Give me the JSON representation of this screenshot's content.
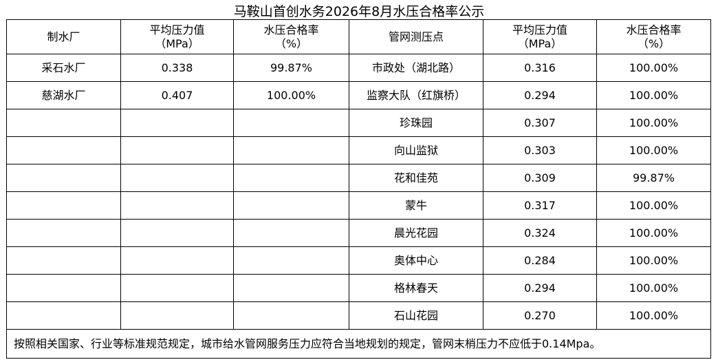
{
  "title": "马鞍山首创水务2026年8月水压合格率公示",
  "table": {
    "header": [
      [
        "制水厂"
      ],
      [
        "平均压力值",
        "（MPa）"
      ],
      [
        "水压合格率",
        "（%）"
      ],
      [
        "管网测压点"
      ],
      [
        "平均压力值",
        "（MPa）"
      ],
      [
        "水压合格率",
        "（%）"
      ]
    ],
    "plants": [
      [
        "采石水厂",
        "0.338",
        "99.87%"
      ],
      [
        "慈湖水厂",
        "0.407",
        "100.00%"
      ]
    ],
    "points": [
      [
        "市政处（湖北路）",
        "0.316",
        "100.00%"
      ],
      [
        "监察大队（红旗桥）",
        "0.294",
        "100.00%"
      ],
      [
        "珍珠园",
        "0.307",
        "100.00%"
      ],
      [
        "向山监狱",
        "0.303",
        "100.00%"
      ],
      [
        "花和佳苑",
        "0.309",
        "99.87%"
      ],
      [
        "蒙牛",
        "0.317",
        "100.00%"
      ],
      [
        "晨光花园",
        "0.324",
        "100.00%"
      ],
      [
        "奥体中心",
        "0.284",
        "100.00%"
      ],
      [
        "格林春天",
        "0.294",
        "100.00%"
      ],
      [
        "石山花园",
        "0.270",
        "100.00%"
      ]
    ],
    "note": "按照相关国家、行业等标准规范规定，城市给水管网服务压力应符合当地规划的规定，管网末梢压力不应低于0.14Mpa。"
  }
}
